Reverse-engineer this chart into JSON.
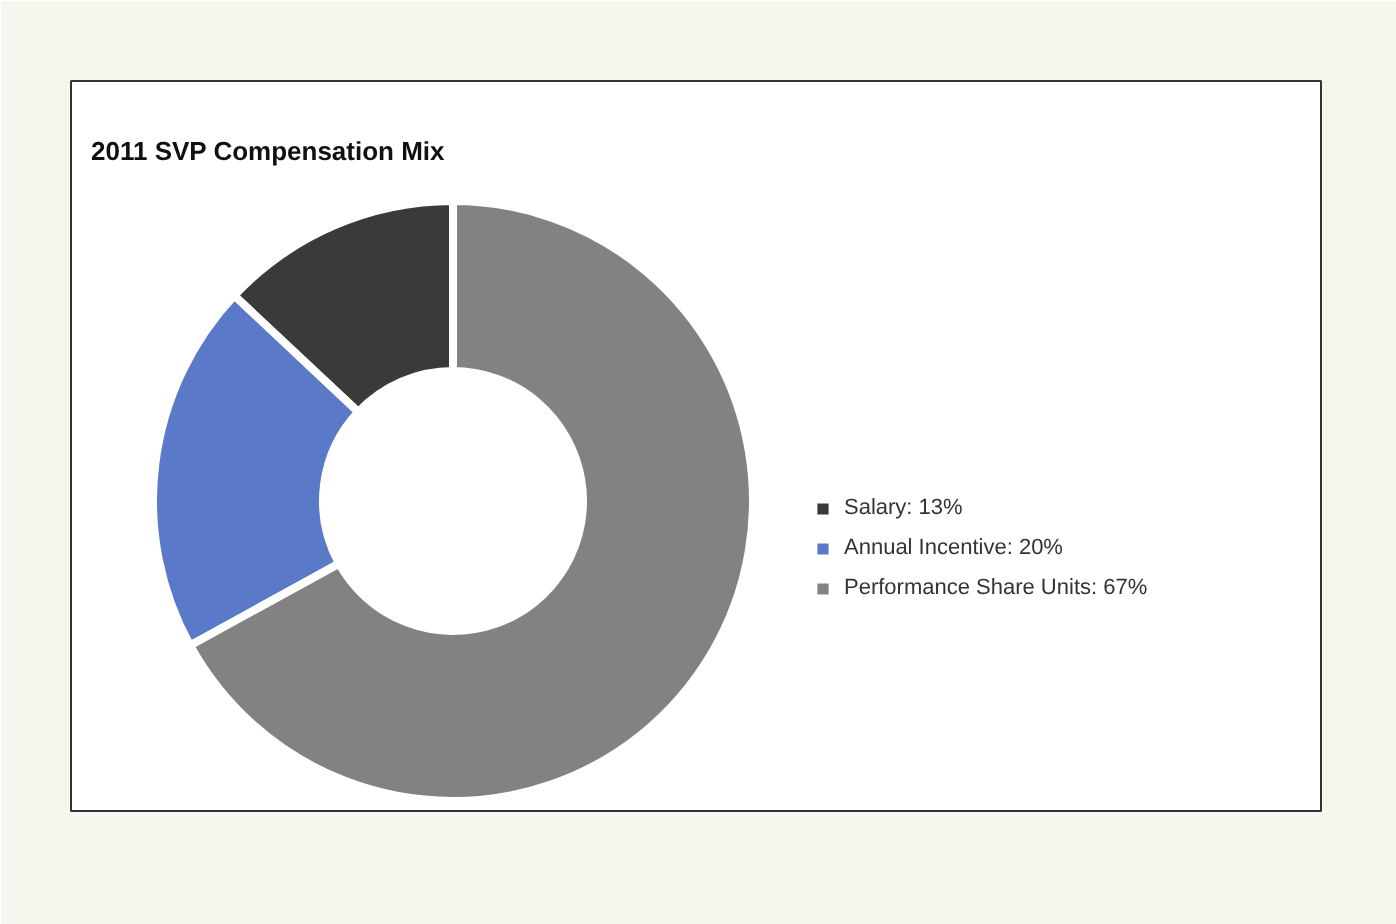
{
  "chart_data": {
    "type": "donut",
    "title": "2011 SVP Compensation Mix",
    "categories": [
      "Salary: 13%",
      "Annual Incentive: 20%",
      "Performance Share Units: 67%"
    ],
    "values": [
      13,
      20,
      67
    ],
    "colors": [
      "#3a3a3a",
      "#5a79c8",
      "#828282"
    ],
    "legend": "right"
  }
}
